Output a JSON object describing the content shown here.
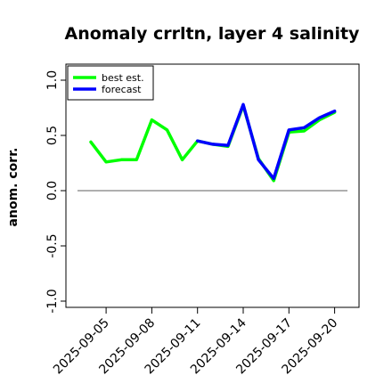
{
  "chart_data": {
    "type": "line",
    "title": "Anomaly crrltn, layer 4 salinity",
    "xlabel": "",
    "ylabel": "anom. corr.",
    "ylim": [
      -1.0,
      1.0
    ],
    "yticks": [
      "-1.0",
      "-0.5",
      "0.0",
      "0.5",
      "1.0"
    ],
    "x": [
      "2025-09-04",
      "2025-09-05",
      "2025-09-06",
      "2025-09-07",
      "2025-09-08",
      "2025-09-09",
      "2025-09-10",
      "2025-09-11",
      "2025-09-12",
      "2025-09-13",
      "2025-09-14",
      "2025-09-15",
      "2025-09-16",
      "2025-09-17",
      "2025-09-18",
      "2025-09-19",
      "2025-09-20"
    ],
    "xtick_labels": [
      "2025-09-05",
      "2025-09-08",
      "2025-09-11",
      "2025-09-14",
      "2025-09-17",
      "2025-09-20"
    ],
    "xtick_highlight": "2025-09-11",
    "reference_line": 0.0,
    "series": [
      {
        "name": "best est.",
        "color": "#00ff00",
        "values": [
          0.44,
          0.26,
          0.28,
          0.28,
          0.64,
          0.55,
          0.28,
          0.45,
          0.42,
          0.4,
          0.77,
          0.29,
          0.09,
          0.53,
          0.54,
          0.64,
          0.71
        ]
      },
      {
        "name": "forecast",
        "color": "#0000ff",
        "values": [
          null,
          null,
          null,
          null,
          null,
          null,
          null,
          0.45,
          0.42,
          0.41,
          0.78,
          0.28,
          0.11,
          0.55,
          0.57,
          0.66,
          0.72
        ]
      }
    ],
    "legend_position": "top-left",
    "grid": false
  },
  "colors": {
    "reference_line": "#7f7f7f",
    "axis": "#000000",
    "highlight_tick": "#228b22"
  }
}
